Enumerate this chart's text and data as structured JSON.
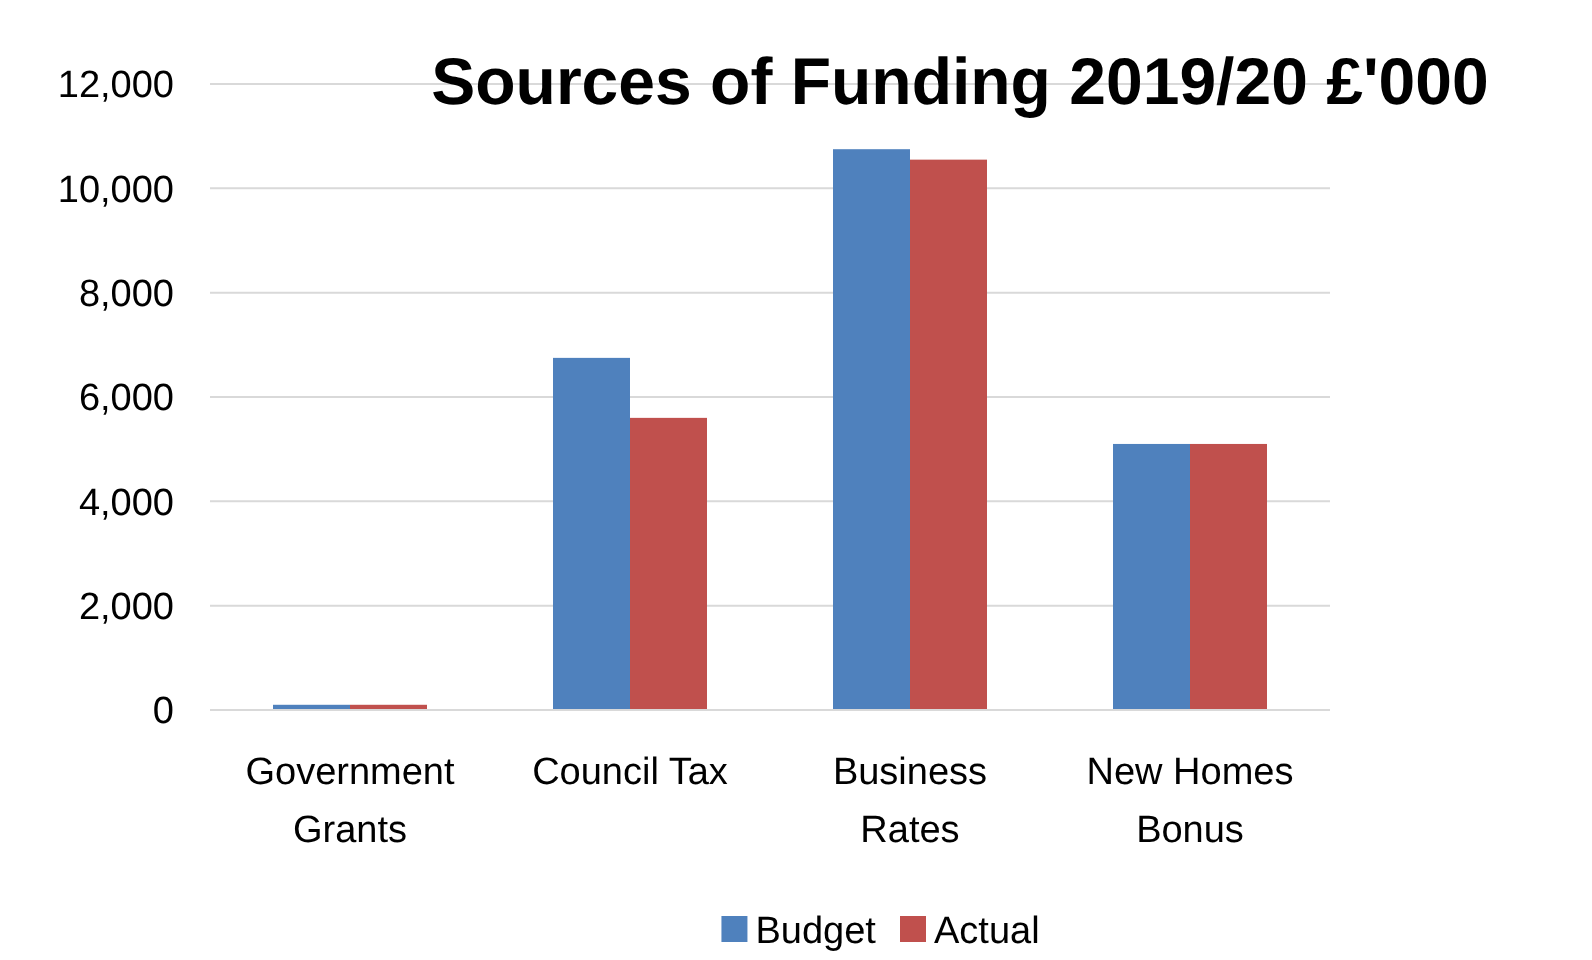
{
  "chart_data": {
    "type": "bar",
    "title": "Sources of Funding 2019/20 £'000",
    "categories": [
      "Government Grants",
      "Council Tax",
      "Business Rates",
      "New Homes Bonus"
    ],
    "series": [
      {
        "name": "Budget",
        "color": "#4f81bd",
        "values": [
          100,
          6750,
          10750,
          5100
        ]
      },
      {
        "name": "Actual",
        "color": "#c0504d",
        "values": [
          100,
          5600,
          10550,
          5100
        ]
      }
    ],
    "ylim": [
      0,
      12000
    ],
    "yticks": [
      {
        "value": 0,
        "label": "0"
      },
      {
        "value": 2000,
        "label": "2,000"
      },
      {
        "value": 4000,
        "label": "4,000"
      },
      {
        "value": 6000,
        "label": "6,000"
      },
      {
        "value": 8000,
        "label": "8,000"
      },
      {
        "value": 10000,
        "label": "10,000"
      },
      {
        "value": 12000,
        "label": "12,000"
      }
    ],
    "grid": "y",
    "legend": "bottom"
  }
}
